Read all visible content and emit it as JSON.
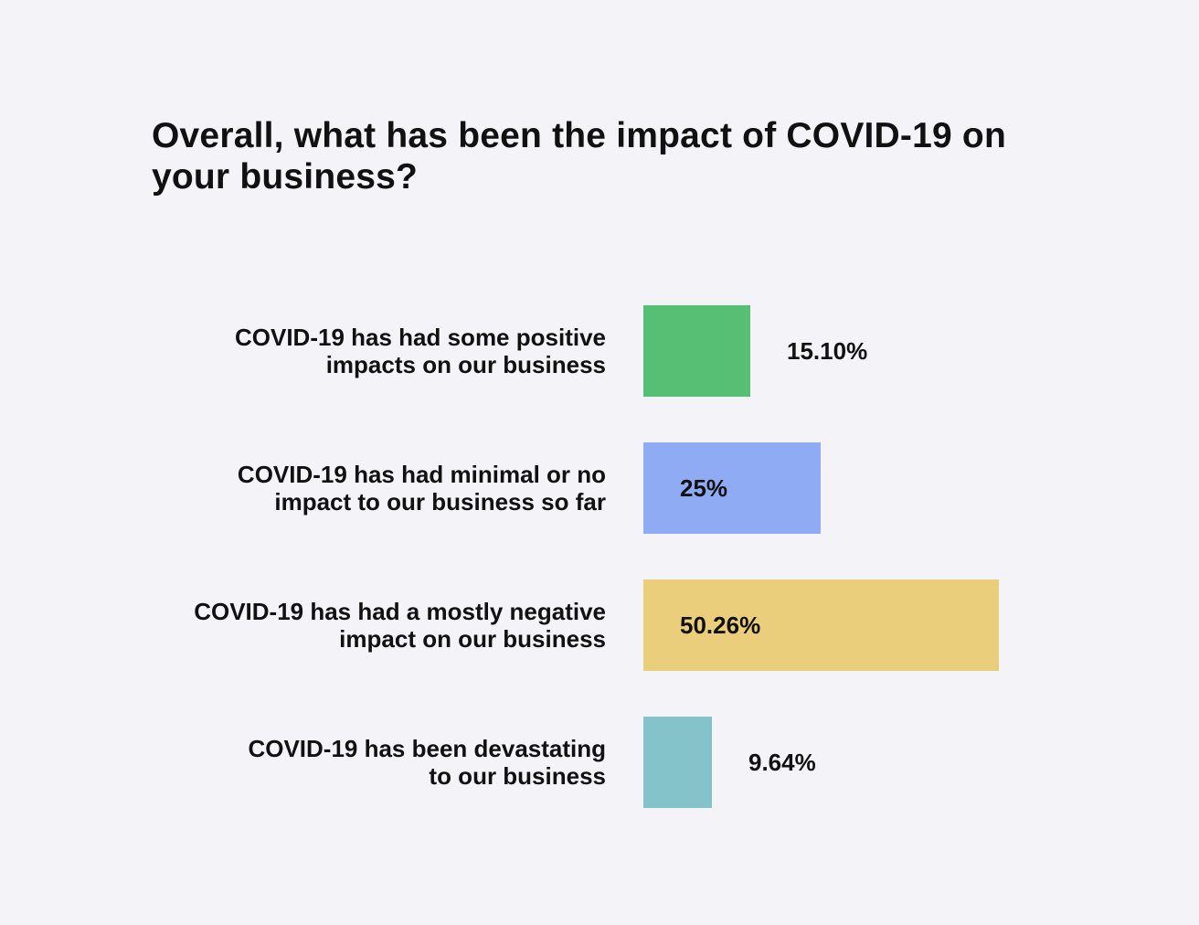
{
  "chart_data": {
    "type": "bar",
    "orientation": "horizontal",
    "title": "Overall, what has been the impact of COVID-19 on your business?",
    "categories": [
      "COVID-19 has had some positive impacts on our business",
      "COVID-19 has had minimal or no impact to our business so far",
      "COVID-19 has had a mostly negative impact on our business",
      "COVID-19 has been devastating to our business"
    ],
    "category_lines": [
      [
        "COVID-19 has had some positive",
        "impacts on our business"
      ],
      [
        "COVID-19 has had minimal or no",
        "impact to our business so far"
      ],
      [
        "COVID-19 has had a mostly negative",
        "impact on our business"
      ],
      [
        "COVID-19 has been devastating",
        "to our business"
      ]
    ],
    "values": [
      15.1,
      25,
      50.26,
      9.64
    ],
    "value_labels": [
      "15.10%",
      "25%",
      "50.26%",
      "9.64%"
    ],
    "colors": [
      "#56bf74",
      "#8fabf3",
      "#eace7b",
      "#83c3c9"
    ],
    "unit": "%",
    "xlim": [
      0,
      100
    ],
    "grid": false,
    "legend": "none"
  }
}
